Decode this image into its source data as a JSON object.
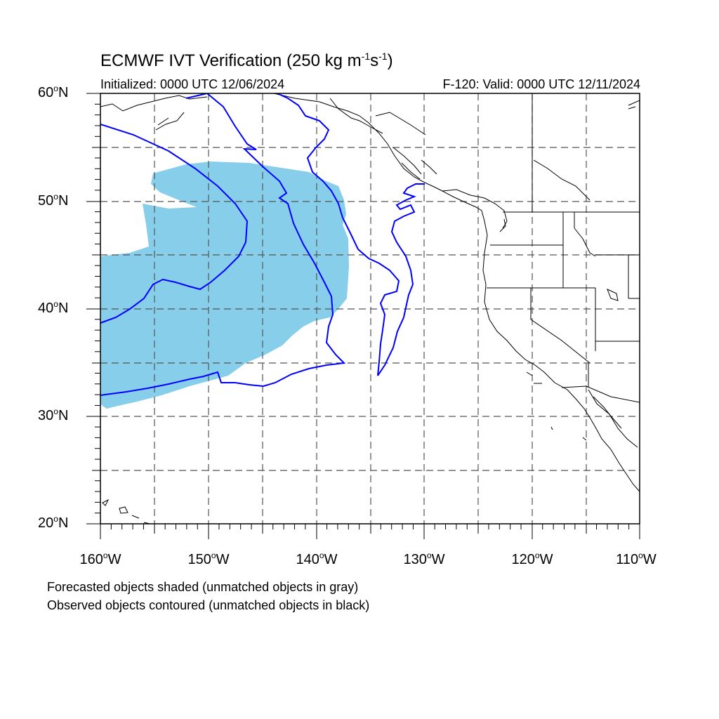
{
  "title": {
    "prefix": "ECMWF IVT Verification (250 kg m",
    "exp1": "-1",
    "mid": "s",
    "exp2": "-1",
    "suffix": ")"
  },
  "initialized": "Initialized: 0000 UTC 12/06/2024",
  "valid": "F-120: Valid: 0000 UTC 12/11/2024",
  "lat_labels": [
    {
      "num": "60",
      "hem": "N"
    },
    {
      "num": "50",
      "hem": "N"
    },
    {
      "num": "40",
      "hem": "N"
    },
    {
      "num": "30",
      "hem": "N"
    },
    {
      "num": "20",
      "hem": "N"
    }
  ],
  "lon_labels": [
    {
      "num": "160",
      "hem": "W"
    },
    {
      "num": "150",
      "hem": "W"
    },
    {
      "num": "140",
      "hem": "W"
    },
    {
      "num": "130",
      "hem": "W"
    },
    {
      "num": "120",
      "hem": "W"
    },
    {
      "num": "110",
      "hem": "W"
    }
  ],
  "notes": [
    "Forecasted objects shaded (unmatched objects in gray)",
    "Observed objects contoured (unmatched objects in black)"
  ],
  "map": {
    "lon_range": [
      -160,
      -110
    ],
    "lat_range": [
      20,
      60
    ],
    "grid_spacing_deg": 5,
    "forecast_fill_color": "#87ceeb",
    "observed_contour_color": "#0000ff",
    "coastline_color": "#000000"
  }
}
